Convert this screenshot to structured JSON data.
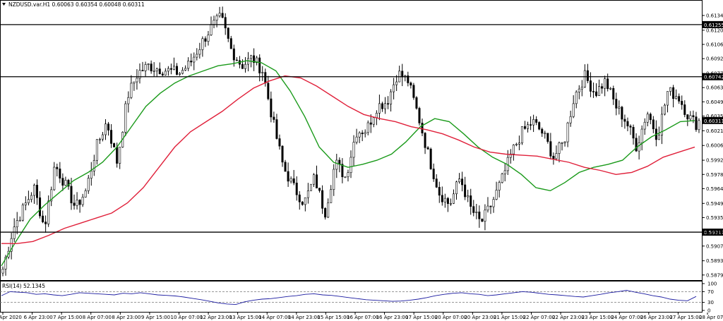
{
  "header": {
    "symbol_line": "NZDUSD.var.H1  0.60063 0.60354 0.60048 0.60311"
  },
  "rsi_header": "RSI(14) 52.1345",
  "colors": {
    "candles": "#000000",
    "ma_fast": "#1a9a1a",
    "ma_slow": "#e0203a",
    "hlines": "#000000",
    "rsi_line": "#1a1aa0",
    "background": "#ffffff"
  },
  "chart_data": [
    {
      "type": "candlestick",
      "title": "NZDUSD.var.H1",
      "y_ticks": [
        "0.61345",
        "0.61200",
        "0.61060",
        "0.60920",
        "0.60775",
        "0.60635",
        "0.60495",
        "0.60355",
        "0.60210",
        "0.60065",
        "0.59920",
        "0.59780",
        "0.59640",
        "0.59495",
        "0.59355",
        "0.59210",
        "0.59075",
        "0.58930",
        "0.58790"
      ],
      "ylim": [
        0.5874,
        0.614
      ],
      "x_labels": [
        "6 Apr 2020",
        "6 Apr 23:00",
        "7 Apr 15:00",
        "8 Apr 07:00",
        "8 Apr 23:00",
        "9 Apr 15:00",
        "10 Apr 07:00",
        "12 Apr 23:00",
        "13 Apr 15:00",
        "14 Apr 07:00",
        "14 Apr 23:00",
        "15 Apr 15:00",
        "16 Apr 07:00",
        "16 Apr 23:00",
        "17 Apr 15:00",
        "20 Apr 07:00",
        "20 Apr 23:00",
        "21 Apr 15:00",
        "22 Apr 07:00",
        "22 Apr 23:00",
        "23 Apr 15:00",
        "24 Apr 07:00",
        "26 Apr 23:00",
        "27 Apr 15:00",
        "28 Apr 07:00"
      ],
      "horizontal_levels": [
        {
          "value": 0.61255,
          "label": "0.61255"
        },
        {
          "value": 0.60742,
          "label": "0.60742"
        },
        {
          "value": 0.59212,
          "label": "0.59212"
        }
      ],
      "current_price": {
        "value": 0.60311,
        "label": "0.60311"
      },
      "price_anchors": [
        0.5885,
        0.5925,
        0.5945,
        0.5965,
        0.5925,
        0.5988,
        0.5968,
        0.5945,
        0.5962,
        0.6005,
        0.603,
        0.599,
        0.6055,
        0.6078,
        0.6085,
        0.6082,
        0.608,
        0.6078,
        0.6087,
        0.6105,
        0.6122,
        0.6133,
        0.61,
        0.6085,
        0.6093,
        0.608,
        0.603,
        0.5985,
        0.5965,
        0.595,
        0.5975,
        0.594,
        0.599,
        0.5975,
        0.602,
        0.6022,
        0.6045,
        0.605,
        0.6078,
        0.607,
        0.6035,
        0.5995,
        0.596,
        0.5948,
        0.5975,
        0.5945,
        0.593,
        0.5948,
        0.5972,
        0.6,
        0.602,
        0.603,
        0.6018,
        0.5995,
        0.601,
        0.6055,
        0.6075,
        0.6058,
        0.607,
        0.6045,
        0.603,
        0.6005,
        0.604,
        0.6015,
        0.606,
        0.6055,
        0.6035,
        0.6025
      ],
      "series": [
        {
          "name": "",
          "kind": "moving_average_fast",
          "values": [
            0.5888,
            0.5912,
            0.5934,
            0.5948,
            0.596,
            0.5972,
            0.598,
            0.599,
            0.6005,
            0.6025,
            0.6045,
            0.6058,
            0.6068,
            0.6075,
            0.608,
            0.6085,
            0.6087,
            0.609,
            0.6088,
            0.608,
            0.606,
            0.6035,
            0.6005,
            0.599,
            0.5985,
            0.5988,
            0.5992,
            0.5998,
            0.601,
            0.6025,
            0.6033,
            0.603,
            0.6018,
            0.6005,
            0.5995,
            0.5988,
            0.5978,
            0.5965,
            0.5962,
            0.597,
            0.598,
            0.5985,
            0.5988,
            0.5992,
            0.6005,
            0.6015,
            0.6022,
            0.603,
            0.6031
          ]
        },
        {
          "name": "",
          "kind": "moving_average_slow",
          "values": [
            0.591,
            0.591,
            0.5912,
            0.5918,
            0.5925,
            0.593,
            0.5935,
            0.594,
            0.595,
            0.5965,
            0.5985,
            0.6005,
            0.602,
            0.603,
            0.604,
            0.6052,
            0.6063,
            0.607,
            0.6075,
            0.6073,
            0.6065,
            0.6055,
            0.6045,
            0.6037,
            0.6033,
            0.603,
            0.6025,
            0.6022,
            0.6018,
            0.6012,
            0.6005,
            0.6,
            0.5998,
            0.5997,
            0.5996,
            0.5993,
            0.599,
            0.5985,
            0.5982,
            0.5978,
            0.598,
            0.5986,
            0.5995,
            0.6,
            0.6005
          ]
        }
      ],
      "subchart": {
        "type": "line",
        "name": "RSI(14)",
        "current": 52.1345,
        "y_ticks": [
          "100",
          "70",
          "30",
          "0"
        ],
        "levels": [
          70,
          30
        ],
        "ylim": [
          0,
          100
        ],
        "values": [
          55,
          70,
          68,
          66,
          60,
          62,
          58,
          55,
          60,
          66,
          64,
          62,
          60,
          58,
          64,
          62,
          66,
          62,
          58,
          56,
          54,
          50,
          45,
          40,
          34,
          28,
          24,
          22,
          32,
          38,
          42,
          44,
          48,
          52,
          55,
          60,
          62,
          58,
          56,
          52,
          48,
          44,
          40,
          38,
          36,
          34,
          35,
          38,
          42,
          48,
          55,
          60,
          64,
          66,
          62,
          60,
          55,
          58,
          62,
          66,
          70,
          68,
          64,
          60,
          58,
          55,
          52,
          50,
          55,
          60,
          66,
          70,
          75,
          68,
          62,
          55,
          50,
          42,
          38,
          36,
          52
        ]
      }
    }
  ]
}
